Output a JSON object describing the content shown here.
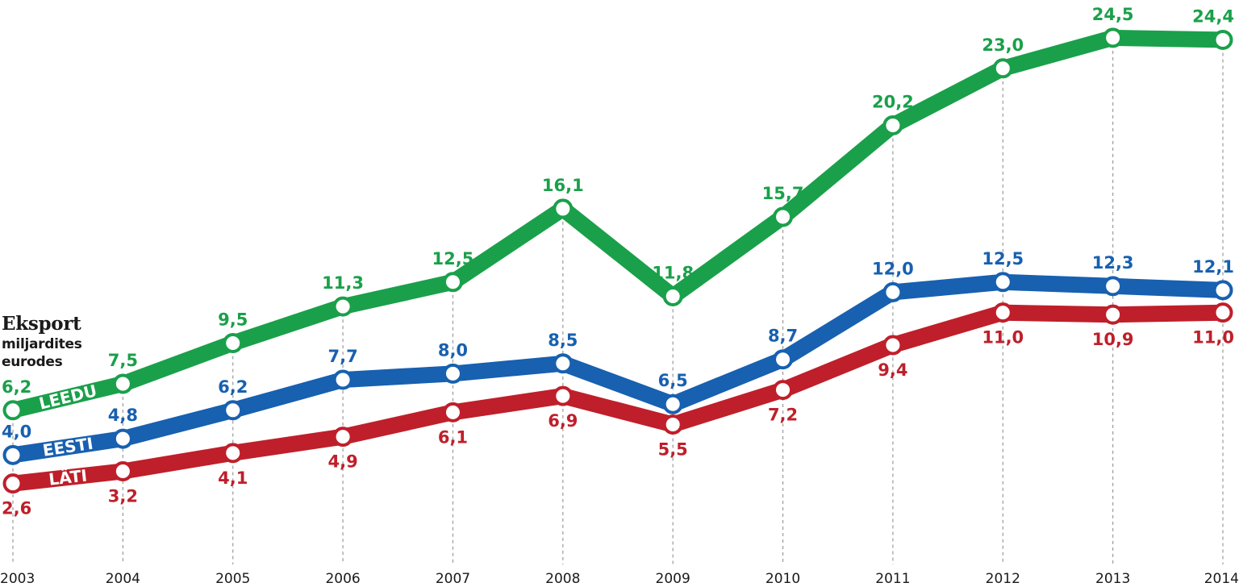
{
  "title": "Eksport",
  "subtitle_line1": "miljardites",
  "subtitle_line2": "eurodes",
  "chart_data": {
    "type": "line",
    "x": [
      "2003",
      "2004",
      "2005",
      "2006",
      "2007",
      "2008",
      "2009",
      "2010",
      "2011",
      "2012",
      "2013",
      "2014"
    ],
    "ylim": [
      0,
      26
    ],
    "grid": "vertical dashed lines at each year",
    "series": [
      {
        "name": "LEEDU",
        "color": "#1aa04a",
        "values": [
          6.2,
          7.5,
          9.5,
          11.3,
          12.5,
          16.1,
          11.8,
          15.7,
          20.2,
          23.0,
          24.5,
          24.4
        ],
        "labels": [
          "6,2",
          "7,5",
          "9,5",
          "11,3",
          "12,5",
          "16,1",
          "11,8",
          "15,7",
          "20,2",
          "23,0",
          "24,5",
          "24,4"
        ]
      },
      {
        "name": "EESTI",
        "color": "#1860b0",
        "values": [
          4.0,
          4.8,
          6.2,
          7.7,
          8.0,
          8.5,
          6.5,
          8.7,
          12.0,
          12.5,
          12.3,
          12.1
        ],
        "labels": [
          "4,0",
          "4,8",
          "6,2",
          "7,7",
          "8,0",
          "8,5",
          "6,5",
          "8,7",
          "12,0",
          "12,5",
          "12,3",
          "12,1"
        ]
      },
      {
        "name": "LÄTI",
        "color": "#bf1f2a",
        "values": [
          2.6,
          3.2,
          4.1,
          4.9,
          6.1,
          6.9,
          5.5,
          7.2,
          9.4,
          11.0,
          10.9,
          11.0
        ],
        "labels": [
          "2,6",
          "3,2",
          "4,1",
          "4,9",
          "6,1",
          "6,9",
          "5,5",
          "7,2",
          "9,4",
          "11,0",
          "10,9",
          "11,0"
        ]
      }
    ]
  }
}
